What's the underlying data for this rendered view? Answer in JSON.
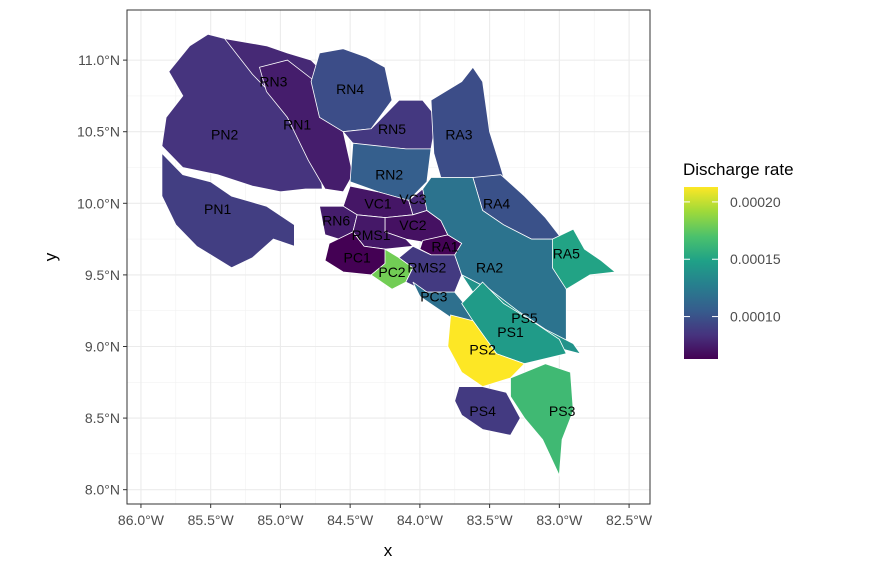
{
  "chart_data": {
    "type": "map",
    "xlabel": "x",
    "ylabel": "y",
    "xlim": [
      -86.1,
      -82.35
    ],
    "ylim": [
      7.9,
      11.35
    ],
    "x_ticks": [
      {
        "value": -86.0,
        "label": "86.0°W"
      },
      {
        "value": -85.5,
        "label": "85.5°W"
      },
      {
        "value": -85.0,
        "label": "85.0°W"
      },
      {
        "value": -84.5,
        "label": "84.5°W"
      },
      {
        "value": -84.0,
        "label": "84.0°W"
      },
      {
        "value": -83.5,
        "label": "83.5°W"
      },
      {
        "value": -83.0,
        "label": "83.0°W"
      },
      {
        "value": -82.5,
        "label": "82.5°W"
      }
    ],
    "y_ticks": [
      {
        "value": 8.0,
        "label": "8.0°N"
      },
      {
        "value": 8.5,
        "label": "8.5°N"
      },
      {
        "value": 9.0,
        "label": "9.0°N"
      },
      {
        "value": 9.5,
        "label": "9.5°N"
      },
      {
        "value": 10.0,
        "label": "10.0°N"
      },
      {
        "value": 10.5,
        "label": "10.5°N"
      },
      {
        "value": 11.0,
        "label": "11.0°N"
      }
    ],
    "grid": true,
    "legend": {
      "title": "Discharge rate",
      "position": "right",
      "min": 6.3e-05,
      "max": 0.000213,
      "ticks": [
        {
          "value": 0.0001,
          "label": "0.00010"
        },
        {
          "value": 0.00015,
          "label": "0.00015"
        },
        {
          "value": 0.0002,
          "label": "0.00020"
        }
      ]
    },
    "regions": [
      {
        "name": "PN2",
        "value": 8.5e-05,
        "lon": -85.4,
        "lat": 10.48,
        "polygon": [
          [
            -85.8,
            10.92
          ],
          [
            -85.65,
            11.1
          ],
          [
            -85.52,
            11.18
          ],
          [
            -85.2,
            11.1
          ],
          [
            -85.0,
            10.9
          ],
          [
            -84.88,
            10.75
          ],
          [
            -84.72,
            10.3
          ],
          [
            -84.7,
            10.1
          ],
          [
            -84.82,
            10.1
          ],
          [
            -85.0,
            10.08
          ],
          [
            -85.2,
            10.12
          ],
          [
            -85.45,
            10.2
          ],
          [
            -85.7,
            10.25
          ],
          [
            -85.85,
            10.4
          ],
          [
            -85.82,
            10.6
          ],
          [
            -85.7,
            10.75
          ]
        ]
      },
      {
        "name": "RN3",
        "value": 8e-05,
        "lon": -85.05,
        "lat": 10.85,
        "polygon": [
          [
            -85.4,
            11.15
          ],
          [
            -85.1,
            11.1
          ],
          [
            -84.95,
            11.05
          ],
          [
            -84.78,
            11.0
          ],
          [
            -84.68,
            10.9
          ],
          [
            -84.72,
            10.72
          ],
          [
            -84.9,
            10.6
          ],
          [
            -85.0,
            10.7
          ],
          [
            -85.2,
            10.9
          ]
        ]
      },
      {
        "name": "RN1",
        "value": 7.5e-05,
        "lon": -84.88,
        "lat": 10.55,
        "polygon": [
          [
            -85.15,
            10.95
          ],
          [
            -84.95,
            11.0
          ],
          [
            -84.75,
            10.85
          ],
          [
            -84.65,
            10.7
          ],
          [
            -84.55,
            10.5
          ],
          [
            -84.48,
            10.2
          ],
          [
            -84.55,
            10.08
          ],
          [
            -84.68,
            10.1
          ],
          [
            -84.8,
            10.3
          ],
          [
            -84.95,
            10.6
          ],
          [
            -85.1,
            10.78
          ]
        ]
      },
      {
        "name": "PN1",
        "value": 9e-05,
        "lon": -85.45,
        "lat": 9.96,
        "polygon": [
          [
            -85.85,
            10.35
          ],
          [
            -85.7,
            10.2
          ],
          [
            -85.5,
            10.15
          ],
          [
            -85.35,
            10.05
          ],
          [
            -85.1,
            9.98
          ],
          [
            -84.9,
            9.85
          ],
          [
            -84.9,
            9.7
          ],
          [
            -85.05,
            9.75
          ],
          [
            -85.2,
            9.62
          ],
          [
            -85.35,
            9.55
          ],
          [
            -85.6,
            9.7
          ],
          [
            -85.75,
            9.85
          ],
          [
            -85.85,
            10.05
          ]
        ]
      },
      {
        "name": "RN4",
        "value": 9.8e-05,
        "lon": -84.5,
        "lat": 10.8,
        "polygon": [
          [
            -84.72,
            11.05
          ],
          [
            -84.55,
            11.08
          ],
          [
            -84.38,
            11.02
          ],
          [
            -84.25,
            10.95
          ],
          [
            -84.2,
            10.72
          ],
          [
            -84.35,
            10.52
          ],
          [
            -84.55,
            10.5
          ],
          [
            -84.72,
            10.6
          ],
          [
            -84.78,
            10.85
          ]
        ]
      },
      {
        "name": "RN5",
        "value": 8.7e-05,
        "lon": -84.2,
        "lat": 10.52,
        "polygon": [
          [
            -84.55,
            10.5
          ],
          [
            -84.35,
            10.52
          ],
          [
            -84.15,
            10.72
          ],
          [
            -83.98,
            10.72
          ],
          [
            -83.88,
            10.6
          ],
          [
            -83.92,
            10.38
          ],
          [
            -84.1,
            10.38
          ],
          [
            -84.35,
            10.4
          ],
          [
            -84.48,
            10.42
          ]
        ]
      },
      {
        "name": "RA3",
        "value": 9.8e-05,
        "lon": -83.72,
        "lat": 10.48,
        "polygon": [
          [
            -83.92,
            10.72
          ],
          [
            -83.7,
            10.85
          ],
          [
            -83.62,
            10.95
          ],
          [
            -83.55,
            10.85
          ],
          [
            -83.5,
            10.5
          ],
          [
            -83.42,
            10.25
          ],
          [
            -83.38,
            10.12
          ],
          [
            -83.5,
            10.15
          ],
          [
            -83.62,
            10.18
          ],
          [
            -83.85,
            10.18
          ],
          [
            -83.9,
            10.35
          ]
        ]
      },
      {
        "name": "RN2",
        "value": 0.000108,
        "lon": -84.22,
        "lat": 10.2,
        "polygon": [
          [
            -84.48,
            10.42
          ],
          [
            -84.1,
            10.38
          ],
          [
            -83.92,
            10.38
          ],
          [
            -83.95,
            10.15
          ],
          [
            -84.08,
            10.02
          ],
          [
            -84.3,
            10.08
          ],
          [
            -84.5,
            10.15
          ]
        ]
      },
      {
        "name": "RA4",
        "value": 0.0001,
        "lon": -83.45,
        "lat": 10.0,
        "polygon": [
          [
            -83.62,
            10.18
          ],
          [
            -83.42,
            10.2
          ],
          [
            -83.25,
            10.05
          ],
          [
            -83.1,
            9.9
          ],
          [
            -82.98,
            9.75
          ],
          [
            -83.2,
            9.75
          ],
          [
            -83.4,
            9.85
          ],
          [
            -83.55,
            9.95
          ]
        ]
      },
      {
        "name": "VC1",
        "value": 7.2e-05,
        "lon": -84.3,
        "lat": 10.0,
        "polygon": [
          [
            -84.5,
            10.12
          ],
          [
            -84.3,
            10.08
          ],
          [
            -84.08,
            10.02
          ],
          [
            -84.05,
            9.92
          ],
          [
            -84.25,
            9.9
          ],
          [
            -84.45,
            9.92
          ],
          [
            -84.55,
            9.98
          ]
        ]
      },
      {
        "name": "VC3",
        "value": 8e-05,
        "lon": -84.05,
        "lat": 10.03,
        "polygon": [
          [
            -84.08,
            10.02
          ],
          [
            -83.98,
            10.1
          ],
          [
            -83.9,
            10.05
          ],
          [
            -83.95,
            9.95
          ],
          [
            -84.05,
            9.92
          ]
        ]
      },
      {
        "name": "VC2",
        "value": 7e-05,
        "lon": -84.05,
        "lat": 9.85,
        "polygon": [
          [
            -84.25,
            9.9
          ],
          [
            -84.05,
            9.92
          ],
          [
            -83.95,
            9.95
          ],
          [
            -83.85,
            9.88
          ],
          [
            -83.8,
            9.78
          ],
          [
            -83.92,
            9.72
          ],
          [
            -84.1,
            9.75
          ],
          [
            -84.25,
            9.8
          ]
        ]
      },
      {
        "name": "RN6",
        "value": 7.5e-05,
        "lon": -84.6,
        "lat": 9.88,
        "polygon": [
          [
            -84.72,
            9.98
          ],
          [
            -84.55,
            9.98
          ],
          [
            -84.45,
            9.92
          ],
          [
            -84.48,
            9.8
          ],
          [
            -84.58,
            9.75
          ],
          [
            -84.68,
            9.78
          ]
        ]
      },
      {
        "name": "RMS1",
        "value": 7.3e-05,
        "lon": -84.35,
        "lat": 9.78,
        "polygon": [
          [
            -84.48,
            9.8
          ],
          [
            -84.45,
            9.92
          ],
          [
            -84.25,
            9.9
          ],
          [
            -84.25,
            9.8
          ],
          [
            -84.1,
            9.75
          ],
          [
            -84.05,
            9.7
          ],
          [
            -84.25,
            9.68
          ],
          [
            -84.4,
            9.7
          ]
        ]
      },
      {
        "name": "RA1",
        "value": 6.4e-05,
        "lon": -83.82,
        "lat": 9.7,
        "polygon": [
          [
            -83.98,
            9.74
          ],
          [
            -83.8,
            9.78
          ],
          [
            -83.7,
            9.72
          ],
          [
            -83.75,
            9.64
          ],
          [
            -83.92,
            9.64
          ],
          [
            -84.0,
            9.68
          ]
        ]
      },
      {
        "name": "PC1",
        "value": 6.3e-05,
        "lon": -84.45,
        "lat": 9.62,
        "polygon": [
          [
            -84.65,
            9.72
          ],
          [
            -84.48,
            9.8
          ],
          [
            -84.4,
            9.7
          ],
          [
            -84.25,
            9.68
          ],
          [
            -84.2,
            9.58
          ],
          [
            -84.35,
            9.5
          ],
          [
            -84.55,
            9.52
          ],
          [
            -84.68,
            9.6
          ]
        ]
      },
      {
        "name": "PC2",
        "value": 0.00018,
        "lon": -84.2,
        "lat": 9.52,
        "polygon": [
          [
            -84.25,
            9.68
          ],
          [
            -84.15,
            9.62
          ],
          [
            -84.05,
            9.55
          ],
          [
            -84.1,
            9.45
          ],
          [
            -84.2,
            9.4
          ],
          [
            -84.35,
            9.5
          ],
          [
            -84.25,
            9.58
          ]
        ]
      },
      {
        "name": "RMS2",
        "value": 8.8e-05,
        "lon": -83.95,
        "lat": 9.55,
        "polygon": [
          [
            -84.15,
            9.62
          ],
          [
            -84.05,
            9.7
          ],
          [
            -83.92,
            9.64
          ],
          [
            -83.75,
            9.64
          ],
          [
            -83.7,
            9.5
          ],
          [
            -83.75,
            9.38
          ],
          [
            -83.95,
            9.38
          ],
          [
            -84.1,
            9.45
          ],
          [
            -84.05,
            9.55
          ]
        ]
      },
      {
        "name": "RA2",
        "value": 0.00012,
        "lon": -83.5,
        "lat": 9.55,
        "polygon": [
          [
            -83.92,
            10.18
          ],
          [
            -83.62,
            10.18
          ],
          [
            -83.55,
            9.95
          ],
          [
            -83.4,
            9.85
          ],
          [
            -83.2,
            9.75
          ],
          [
            -82.98,
            9.75
          ],
          [
            -82.95,
            9.4
          ],
          [
            -82.95,
            9.0
          ],
          [
            -83.15,
            9.1
          ],
          [
            -83.35,
            9.25
          ],
          [
            -83.5,
            9.4
          ],
          [
            -83.7,
            9.5
          ],
          [
            -83.75,
            9.64
          ],
          [
            -83.7,
            9.72
          ],
          [
            -83.8,
            9.78
          ],
          [
            -83.85,
            9.88
          ],
          [
            -83.95,
            9.95
          ],
          [
            -83.98,
            10.1
          ]
        ]
      },
      {
        "name": "RA5",
        "value": 0.00015,
        "lon": -82.95,
        "lat": 9.65,
        "polygon": [
          [
            -83.05,
            9.75
          ],
          [
            -82.9,
            9.82
          ],
          [
            -82.82,
            9.68
          ],
          [
            -82.7,
            9.6
          ],
          [
            -82.6,
            9.52
          ],
          [
            -82.78,
            9.5
          ],
          [
            -82.95,
            9.4
          ],
          [
            -83.05,
            9.55
          ]
        ]
      },
      {
        "name": "PC3",
        "value": 0.000118,
        "lon": -83.9,
        "lat": 9.35,
        "polygon": [
          [
            -84.05,
            9.45
          ],
          [
            -83.95,
            9.38
          ],
          [
            -83.75,
            9.38
          ],
          [
            -83.6,
            9.2
          ],
          [
            -83.55,
            9.1
          ],
          [
            -83.7,
            9.15
          ],
          [
            -83.85,
            9.25
          ],
          [
            -84.0,
            9.35
          ]
        ]
      },
      {
        "name": "PS5",
        "value": 0.00014,
        "lon": -83.25,
        "lat": 9.2,
        "polygon": [
          [
            -83.7,
            9.5
          ],
          [
            -83.5,
            9.4
          ],
          [
            -83.3,
            9.25
          ],
          [
            -83.1,
            9.12
          ],
          [
            -82.9,
            9.02
          ],
          [
            -82.85,
            8.95
          ],
          [
            -83.05,
            9.0
          ],
          [
            -83.25,
            9.12
          ],
          [
            -83.45,
            9.25
          ],
          [
            -83.62,
            9.38
          ]
        ]
      },
      {
        "name": "PS1",
        "value": 0.000145,
        "lon": -83.35,
        "lat": 9.1,
        "polygon": [
          [
            -83.55,
            9.45
          ],
          [
            -83.4,
            9.3
          ],
          [
            -83.2,
            9.18
          ],
          [
            -83.0,
            9.05
          ],
          [
            -82.95,
            8.95
          ],
          [
            -83.25,
            8.88
          ],
          [
            -83.45,
            8.95
          ],
          [
            -83.62,
            9.18
          ],
          [
            -83.7,
            9.3
          ]
        ]
      },
      {
        "name": "PS2",
        "value": 0.000213,
        "lon": -83.55,
        "lat": 8.98,
        "polygon": [
          [
            -83.78,
            9.22
          ],
          [
            -83.62,
            9.18
          ],
          [
            -83.45,
            8.95
          ],
          [
            -83.25,
            8.88
          ],
          [
            -83.35,
            8.78
          ],
          [
            -83.55,
            8.72
          ],
          [
            -83.7,
            8.82
          ],
          [
            -83.8,
            9.0
          ]
        ]
      },
      {
        "name": "PS3",
        "value": 0.000165,
        "lon": -82.98,
        "lat": 8.55,
        "polygon": [
          [
            -83.35,
            8.78
          ],
          [
            -83.1,
            8.88
          ],
          [
            -82.92,
            8.82
          ],
          [
            -82.9,
            8.55
          ],
          [
            -82.98,
            8.35
          ],
          [
            -83.0,
            8.1
          ],
          [
            -83.12,
            8.35
          ],
          [
            -83.25,
            8.5
          ],
          [
            -83.35,
            8.65
          ]
        ]
      },
      {
        "name": "PS4",
        "value": 8.8e-05,
        "lon": -83.55,
        "lat": 8.55,
        "polygon": [
          [
            -83.72,
            8.72
          ],
          [
            -83.55,
            8.72
          ],
          [
            -83.38,
            8.68
          ],
          [
            -83.28,
            8.5
          ],
          [
            -83.35,
            8.38
          ],
          [
            -83.55,
            8.42
          ],
          [
            -83.7,
            8.52
          ],
          [
            -83.75,
            8.62
          ]
        ]
      }
    ]
  }
}
